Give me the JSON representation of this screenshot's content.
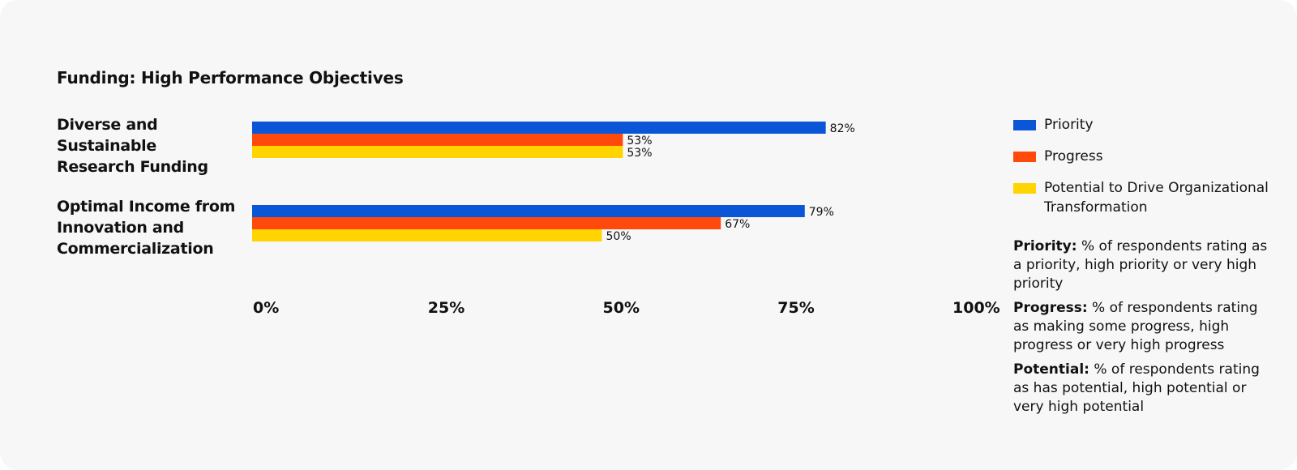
{
  "chart_data": {
    "type": "bar",
    "orientation": "horizontal",
    "title": "Funding: High Performance Objectives",
    "categories": [
      "Diverse and Sustainable Research Funding",
      "Optimal Income from Innovation and Commercialization"
    ],
    "category_lines": [
      [
        "Diverse and",
        "Sustainable",
        "Research Funding"
      ],
      [
        "Optimal Income from",
        "Innovation and",
        "Commercialization"
      ]
    ],
    "series": [
      {
        "name": "Priority",
        "color": "#0a56d6",
        "values": [
          82,
          79
        ]
      },
      {
        "name": "Progress",
        "color": "#ff4a0c",
        "values": [
          53,
          67
        ]
      },
      {
        "name": "Potential to Drive Organizational Transformation",
        "color": "#ffd400",
        "values": [
          53,
          50
        ]
      }
    ],
    "xlim": [
      0,
      100
    ],
    "xticks": [
      0,
      25,
      50,
      75,
      100
    ],
    "xtick_labels": [
      "0%",
      "25%",
      "50%",
      "75%",
      "100%"
    ],
    "value_suffix": "%",
    "grid": false,
    "legend_position": "right"
  },
  "legend": {
    "items": [
      {
        "label": "Priority",
        "color": "#0a56d6"
      },
      {
        "label": "Progress",
        "color": "#ff4a0c"
      },
      {
        "label": "Potential to Drive Organizational Transformation",
        "color": "#ffd400"
      }
    ]
  },
  "notes": [
    {
      "term": "Priority:",
      "text": "% of respondents rating as a priority, high priority or very high priority"
    },
    {
      "term": "Progress:",
      "text": "% of respondents rating as making some progress, high progress or very high progress"
    },
    {
      "term": "Potential:",
      "text": "% of respondents rating as has potential, high potential or very high potential"
    }
  ]
}
